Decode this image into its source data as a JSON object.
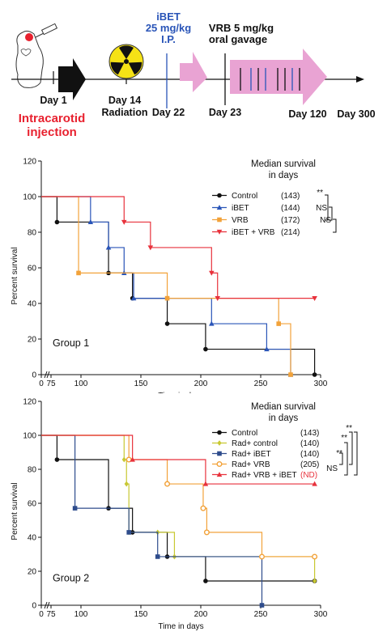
{
  "timeline": {
    "day1_label": "Day 1",
    "injection_label_line1": "Intracarotid",
    "injection_label_line2": "injection",
    "day14_label": "Day 14",
    "radiation_label": "Radiation",
    "ibet_title": "iBET",
    "ibet_dose": "25 mg/kg",
    "ibet_route": "I.P.",
    "day22_label": "Day 22",
    "vrb_dose": "VRB 5 mg/kg",
    "vrb_route": "oral gavage",
    "day23_label": "Day 23",
    "day120_label": "Day 120",
    "day300_label": "Day 300",
    "colors": {
      "injection": "#e8212f",
      "ibet": "#2a55b8",
      "arrow_pink": "#e9a3d3",
      "radiation": "#f5e216"
    },
    "icons": [
      "mouse-syringe-icon",
      "radiation-icon"
    ]
  },
  "chart_data": [
    {
      "type": "line",
      "step": true,
      "group_label": "Group 1",
      "legend_title_line1": "Median survival",
      "legend_title_line2": "in days",
      "xlabel": "Time in days",
      "ylabel": "Percent survival",
      "xlim": [
        0,
        300
      ],
      "ylim": [
        0,
        120
      ],
      "xticks": [
        "0",
        "75",
        "100",
        "150",
        "200",
        "250",
        "300"
      ],
      "xtick_values": [
        0,
        75,
        100,
        150,
        200,
        250,
        300
      ],
      "yticks": [
        "0",
        "20",
        "40",
        "60",
        "80",
        "100",
        "120"
      ],
      "ytick_values": [
        0,
        20,
        40,
        60,
        80,
        100,
        120
      ],
      "series": [
        {
          "name": "Control",
          "median": "(143)",
          "color": "#111111",
          "marker": "circle",
          "x": [
            0,
            80,
            123,
            143,
            172,
            204,
            295
          ],
          "y": [
            100,
            85.7,
            57.1,
            42.9,
            28.6,
            14.3,
            0
          ]
        },
        {
          "name": "iBET",
          "median": "(144)",
          "color": "#2a55b8",
          "marker": "triangle-up",
          "x": [
            0,
            108,
            123,
            136,
            144,
            209,
            255,
            275
          ],
          "y": [
            100,
            85.7,
            71.4,
            57.1,
            42.9,
            28.6,
            14.3,
            0
          ]
        },
        {
          "name": "VRB",
          "median": "(172)",
          "color": "#f2a23a",
          "marker": "square",
          "x": [
            0,
            98,
            172,
            265,
            275
          ],
          "y": [
            100,
            57.1,
            42.9,
            28.6,
            0
          ]
        },
        {
          "name": "iBET + VRB",
          "median": "(214)",
          "color": "#e8323c",
          "marker": "triangle-down",
          "x": [
            0,
            136,
            158,
            209,
            214,
            295
          ],
          "y": [
            100,
            85.7,
            71.4,
            57.1,
            42.9,
            42.9
          ]
        }
      ],
      "significance": [
        "**",
        "NS",
        "NS"
      ]
    },
    {
      "type": "line",
      "step": true,
      "group_label": "Group 2",
      "legend_title_line1": "Median survival",
      "legend_title_line2": "in days",
      "xlabel": "Time in days",
      "ylabel": "Percent survival",
      "xlim": [
        0,
        300
      ],
      "ylim": [
        0,
        120
      ],
      "xticks": [
        "0",
        "75",
        "100",
        "150",
        "200",
        "250",
        "300"
      ],
      "xtick_values": [
        0,
        75,
        100,
        150,
        200,
        250,
        300
      ],
      "yticks": [
        "0",
        "20",
        "40",
        "60",
        "80",
        "100",
        "120"
      ],
      "ytick_values": [
        0,
        20,
        40,
        60,
        80,
        100,
        120
      ],
      "series": [
        {
          "name": "Control",
          "median": "(143)",
          "color": "#111111",
          "marker": "circle",
          "x": [
            0,
            80,
            123,
            143,
            172,
            204,
            295
          ],
          "y": [
            100,
            85.7,
            57.1,
            42.9,
            28.6,
            14.3,
            14.3
          ]
        },
        {
          "name": "Rad+ control",
          "median": "(140)",
          "color": "#c8c832",
          "marker": "diamond",
          "x": [
            0,
            136,
            138,
            140,
            164,
            178,
            295
          ],
          "y": [
            100,
            85.7,
            71.4,
            42.9,
            42.9,
            28.6,
            14.3
          ]
        },
        {
          "name": "Rad+ iBET",
          "median": "(140)",
          "color": "#2e4c8c",
          "marker": "square",
          "x": [
            0,
            95,
            140,
            164,
            251
          ],
          "y": [
            100,
            57.1,
            42.9,
            28.6,
            0
          ]
        },
        {
          "name": "Rad+ VRB",
          "median": "(205)",
          "color": "#f2a23a",
          "marker": "circle-open",
          "x": [
            0,
            140,
            172,
            202,
            205,
            251,
            295
          ],
          "y": [
            100,
            85.7,
            71.4,
            57.1,
            42.9,
            28.6,
            28.6
          ]
        },
        {
          "name": "Rad+ VRB + iBET",
          "median": "(ND)",
          "color": "#e8323c",
          "marker": "triangle-up",
          "x": [
            0,
            143,
            204,
            295
          ],
          "y": [
            100,
            85.7,
            71.4,
            71.4
          ]
        }
      ],
      "significance": [
        "**",
        "**",
        "**",
        "NS"
      ]
    }
  ]
}
